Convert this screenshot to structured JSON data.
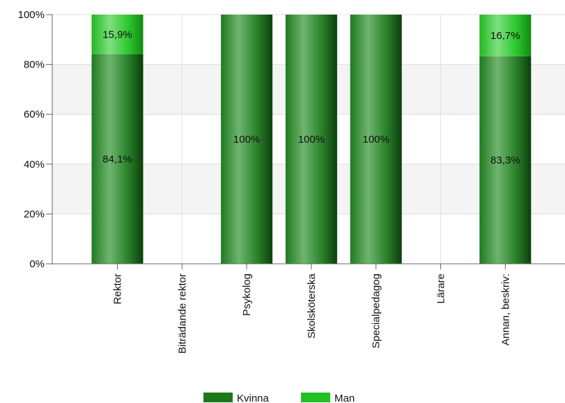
{
  "chart_data": {
    "type": "bar",
    "stacked": true,
    "categories": [
      "Rektor",
      "Biträdande rektor",
      "Psykolog",
      "Skolsköterska",
      "Specialpedagog",
      "Lärare",
      "Annan, beskriv:"
    ],
    "series": [
      {
        "name": "Kvinna",
        "color": "#1a7a1a",
        "values": [
          84.1,
          null,
          100,
          100,
          100,
          null,
          83.3
        ],
        "labels": [
          "84,1%",
          "",
          "100%",
          "100%",
          "100%",
          "",
          "83,3%"
        ]
      },
      {
        "name": "Man",
        "color": "#22c022",
        "values": [
          15.9,
          null,
          null,
          null,
          null,
          null,
          16.7
        ],
        "labels": [
          "15,9%",
          "",
          "",
          "",
          "",
          "",
          "16,7%"
        ]
      }
    ],
    "ylim": [
      0,
      100
    ],
    "yticks": [
      "0%",
      "20%",
      "40%",
      "60%",
      "80%",
      "100%"
    ],
    "grid": true,
    "legend_position": "bottom-center"
  }
}
